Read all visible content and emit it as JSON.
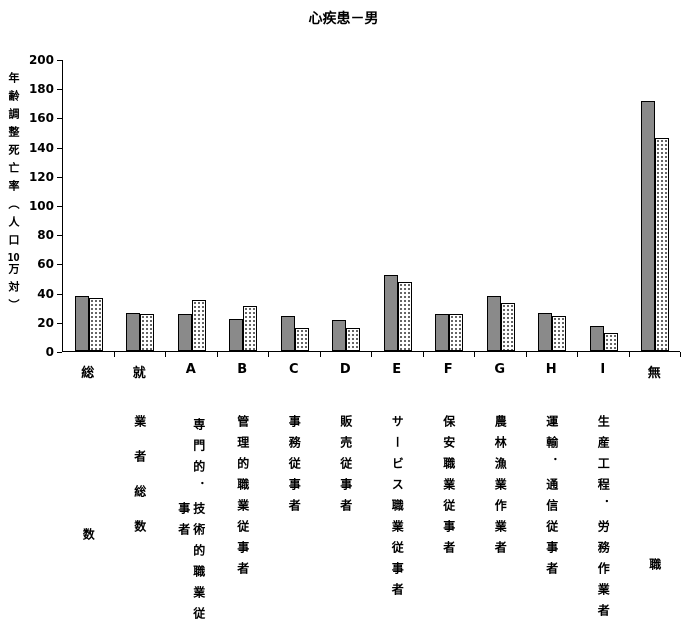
{
  "chart_data": {
    "type": "bar",
    "title": "心疾患－男",
    "ylabel": "年齢調整死亡率（人口10万対）",
    "ylim": [
      0,
      200
    ],
    "ytick_step": 20,
    "grid": false,
    "legend_position": "none",
    "colors": {
      "series1_fill": "#8a8a8a",
      "series2_fill": "#ffffff",
      "series2_dots": "#333333",
      "outline": "#000000"
    },
    "categories": [
      {
        "main": "総",
        "sub": "数",
        "sub_top": 113
      },
      {
        "main": "就",
        "sub": "業者総数",
        "sub_pitch": 35
      },
      {
        "main": "A",
        "sub": "専門的．技術的職業従事者",
        "sub_wrap_height": 215
      },
      {
        "main": "B",
        "sub": "管理的職業従事者"
      },
      {
        "main": "C",
        "sub": "事務従事者"
      },
      {
        "main": "D",
        "sub": "販売従事者"
      },
      {
        "main": "E",
        "sub": "サービス職業従事者"
      },
      {
        "main": "F",
        "sub": "保安職業従事者"
      },
      {
        "main": "G",
        "sub": "農林漁業作業者"
      },
      {
        "main": "H",
        "sub": "運輸．通信従事者"
      },
      {
        "main": "I",
        "sub": "生産工程．労務作業者"
      },
      {
        "main": "無",
        "sub": "職",
        "sub_top": 143
      }
    ],
    "series": [
      {
        "name": "series1",
        "pattern": "solid-gray",
        "values": [
          38,
          26,
          25,
          22,
          24,
          21,
          52,
          25,
          38,
          26,
          17,
          171
        ]
      },
      {
        "name": "series2",
        "pattern": "white-dotted",
        "values": [
          36,
          25,
          35,
          31,
          16,
          16,
          47,
          25,
          33,
          24,
          12,
          146
        ]
      }
    ]
  }
}
